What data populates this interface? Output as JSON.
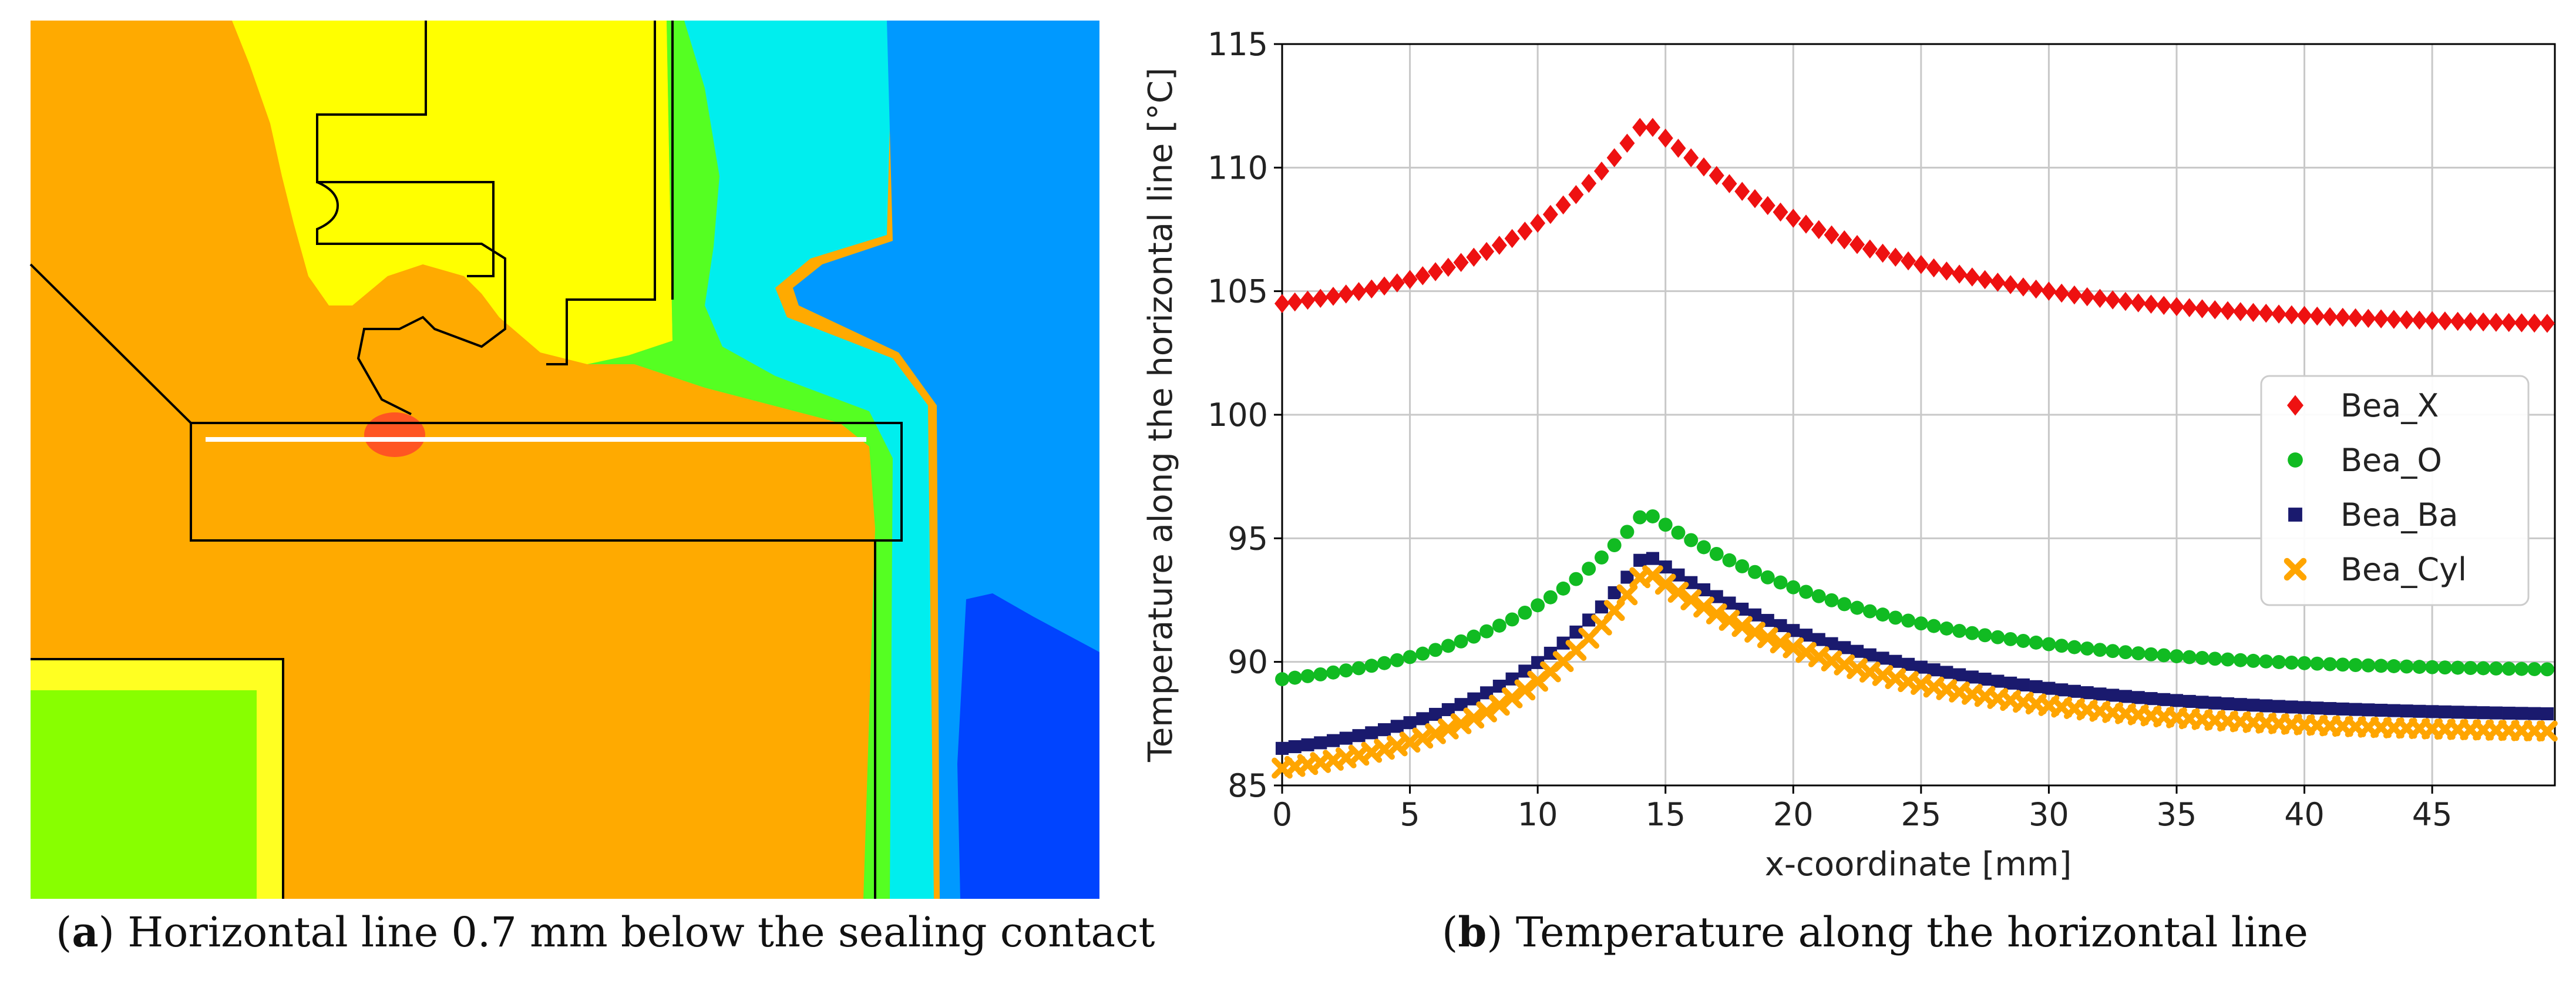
{
  "panel_a": {
    "label": "a",
    "caption": "Horizontal line 0.7 mm below the sealing contact"
  },
  "panel_b": {
    "label": "b",
    "caption": "Temperature along the horizontal line"
  },
  "chart_data": {
    "type": "scatter",
    "title": "",
    "xlabel": "x-coordinate [mm]",
    "ylabel": "Temperature along the horizontal line [°C]",
    "xlim": [
      0,
      49.8
    ],
    "ylim": [
      85,
      115
    ],
    "xticks": [
      0,
      5,
      10,
      15,
      20,
      25,
      30,
      35,
      40,
      45
    ],
    "yticks": [
      85,
      90,
      95,
      100,
      105,
      110,
      115
    ],
    "grid": true,
    "legend_position": "center-right",
    "x_start": 0,
    "x_end": 49.5,
    "x_step": 0.5,
    "peak_x": 14.2,
    "series": [
      {
        "name": "Bea_X",
        "marker": "diamond",
        "color": "#ee1111",
        "start_value": 104.5,
        "peak_value": 111.9,
        "end_value": 103.7
      },
      {
        "name": "Bea_O",
        "marker": "circle",
        "color": "#11bb22",
        "start_value": 89.3,
        "peak_value": 96.1,
        "end_value": 89.7
      },
      {
        "name": "Bea_Ba",
        "marker": "square",
        "color": "#1a1a6e",
        "start_value": 86.5,
        "peak_value": 94.4,
        "end_value": 87.9
      },
      {
        "name": "Bea_Cyl",
        "marker": "x",
        "color": "#ffa500",
        "start_value": 85.7,
        "peak_value": 93.7,
        "end_value": 87.2
      }
    ]
  }
}
